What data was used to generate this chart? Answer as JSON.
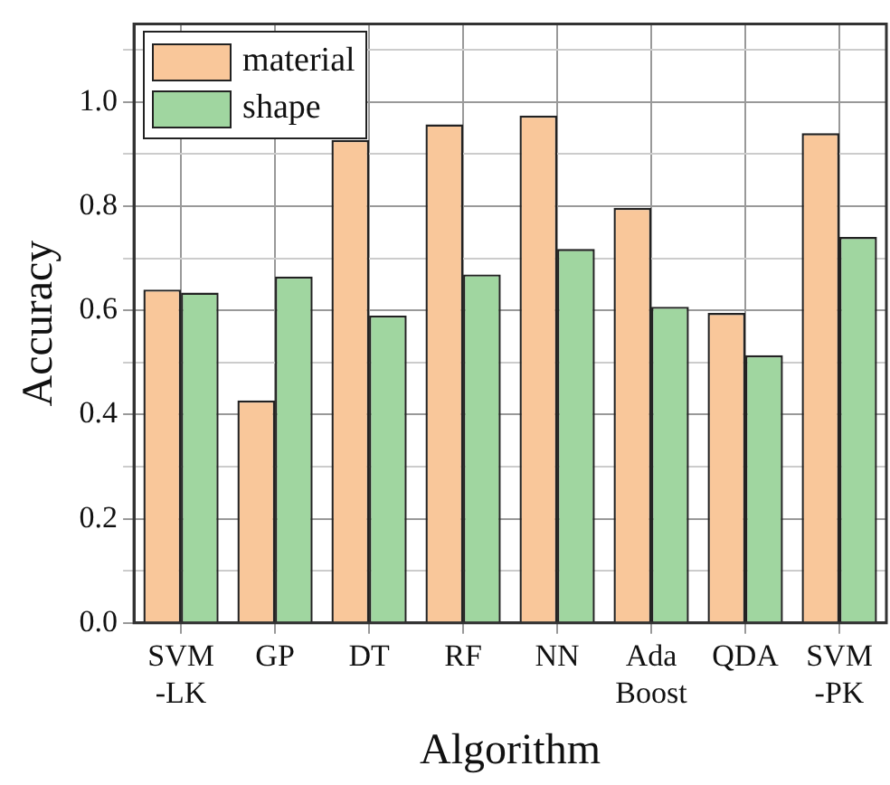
{
  "chart_data": {
    "type": "bar",
    "xlabel": "Algorithm",
    "ylabel": "Accuracy",
    "categories": [
      "SVM\n-LK",
      "GP",
      "DT",
      "RF",
      "NN",
      "Ada\nBoost",
      "QDA",
      "SVM\n-PK"
    ],
    "series": [
      {
        "name": "material",
        "color": "#f9c79a",
        "values": [
          0.64,
          0.427,
          0.927,
          0.957,
          0.974,
          0.797,
          0.595,
          0.94
        ]
      },
      {
        "name": "shape",
        "color": "#a0d6a0",
        "values": [
          0.634,
          0.665,
          0.59,
          0.669,
          0.718,
          0.607,
          0.514,
          0.741
        ]
      }
    ],
    "ylim": [
      0,
      1.15
    ],
    "yticks": [
      {
        "value": 0,
        "label": "0.0"
      },
      {
        "value": 0.1,
        "label": null
      },
      0.2,
      {
        "value": 0.3,
        "label": null
      },
      0.4,
      {
        "value": 0.5,
        "label": null
      },
      0.6,
      {
        "value": 0.7,
        "label": null
      },
      0.8,
      {
        "value": 0.9,
        "label": null
      },
      {
        "value": 1,
        "label": "1.0"
      },
      {
        "value": 1.1,
        "label": null
      }
    ],
    "grid": true,
    "legend": "top left"
  }
}
